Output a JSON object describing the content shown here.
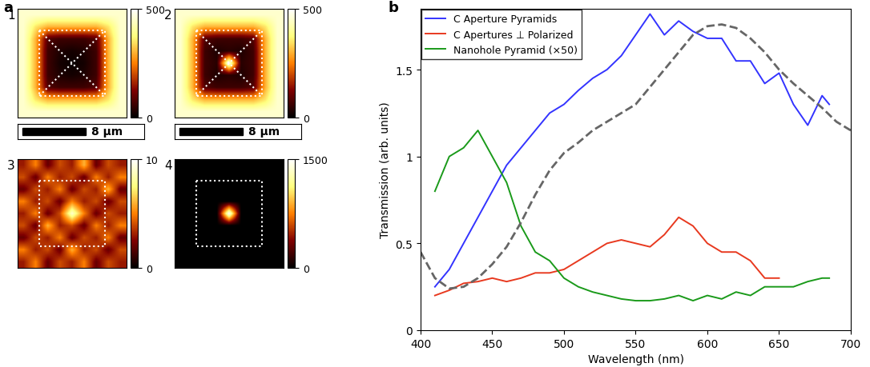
{
  "panel_labels": [
    "a",
    "b"
  ],
  "chart_data": [
    {
      "type": "heatmap",
      "label": "1",
      "tick_labels": false,
      "scale_bar_label": "8 µm",
      "colorbar_range": [
        0,
        500
      ],
      "colorbar_ticks": [
        0,
        500
      ],
      "cells": [
        [
          450,
          450,
          450,
          450,
          450,
          450,
          450,
          450,
          450
        ],
        [
          450,
          350,
          300,
          300,
          300,
          300,
          300,
          350,
          450
        ],
        [
          450,
          300,
          80,
          60,
          60,
          60,
          80,
          300,
          450
        ],
        [
          450,
          300,
          60,
          30,
          20,
          30,
          60,
          300,
          450
        ],
        [
          450,
          300,
          60,
          20,
          10,
          20,
          60,
          300,
          450
        ],
        [
          450,
          300,
          60,
          30,
          20,
          30,
          60,
          300,
          450
        ],
        [
          450,
          300,
          80,
          60,
          60,
          60,
          80,
          300,
          450
        ],
        [
          450,
          350,
          300,
          300,
          300,
          300,
          300,
          350,
          450
        ],
        [
          450,
          450,
          450,
          450,
          450,
          450,
          450,
          450,
          450
        ]
      ]
    },
    {
      "type": "heatmap",
      "label": "2",
      "tick_labels": false,
      "scale_bar_label": "8 µm",
      "colorbar_range": [
        0,
        500
      ],
      "colorbar_ticks": [
        0,
        500
      ],
      "cells": [
        [
          450,
          450,
          450,
          450,
          450,
          450,
          450,
          450,
          450
        ],
        [
          450,
          350,
          300,
          300,
          300,
          300,
          300,
          350,
          450
        ],
        [
          450,
          300,
          80,
          60,
          60,
          60,
          80,
          300,
          450
        ],
        [
          450,
          300,
          60,
          30,
          40,
          30,
          60,
          300,
          450
        ],
        [
          450,
          300,
          60,
          40,
          500,
          40,
          60,
          300,
          450
        ],
        [
          450,
          300,
          60,
          30,
          40,
          30,
          60,
          300,
          450
        ],
        [
          450,
          300,
          80,
          60,
          60,
          60,
          80,
          300,
          450
        ],
        [
          450,
          350,
          300,
          300,
          300,
          300,
          300,
          350,
          450
        ],
        [
          450,
          450,
          450,
          450,
          450,
          450,
          450,
          450,
          450
        ]
      ]
    },
    {
      "type": "heatmap",
      "label": "3",
      "tick_labels": false,
      "colorbar_range": [
        0,
        10
      ],
      "colorbar_ticks": [
        0,
        10
      ],
      "cells": [
        [
          3,
          5,
          2,
          4,
          3,
          6,
          2,
          4,
          3
        ],
        [
          4,
          2,
          5,
          3,
          4,
          2,
          5,
          3,
          5
        ],
        [
          2,
          4,
          3,
          5,
          2,
          4,
          3,
          6,
          2
        ],
        [
          5,
          3,
          4,
          2,
          5,
          3,
          4,
          2,
          4
        ],
        [
          3,
          5,
          2,
          4,
          9,
          5,
          2,
          4,
          3
        ],
        [
          4,
          2,
          6,
          3,
          4,
          2,
          5,
          3,
          5
        ],
        [
          2,
          4,
          3,
          5,
          2,
          4,
          3,
          5,
          2
        ],
        [
          5,
          3,
          4,
          2,
          6,
          3,
          4,
          2,
          4
        ],
        [
          3,
          5,
          2,
          4,
          3,
          5,
          2,
          4,
          3
        ]
      ]
    },
    {
      "type": "heatmap",
      "label": "4",
      "tick_labels": false,
      "colorbar_range": [
        0,
        1500
      ],
      "colorbar_ticks": [
        0,
        1500
      ],
      "cells": [
        [
          0,
          0,
          0,
          0,
          0,
          0,
          0,
          0,
          0
        ],
        [
          0,
          0,
          0,
          0,
          0,
          0,
          0,
          0,
          0
        ],
        [
          0,
          0,
          0,
          0,
          0,
          0,
          0,
          0,
          0
        ],
        [
          0,
          0,
          0,
          0,
          0,
          0,
          0,
          0,
          0
        ],
        [
          0,
          0,
          0,
          0,
          1500,
          0,
          0,
          0,
          0
        ],
        [
          0,
          0,
          0,
          0,
          0,
          0,
          0,
          0,
          0
        ],
        [
          0,
          0,
          0,
          0,
          0,
          0,
          0,
          0,
          0
        ],
        [
          0,
          0,
          0,
          0,
          0,
          0,
          0,
          0,
          0
        ],
        [
          0,
          0,
          0,
          0,
          0,
          0,
          0,
          0,
          0
        ]
      ]
    },
    {
      "type": "line",
      "xlabel": "Wavelength (nm)",
      "ylabel": "Transmission (arb. units)",
      "xlim": [
        400,
        700
      ],
      "ylim": [
        0,
        1.85
      ],
      "xticks": [
        400,
        450,
        500,
        550,
        600,
        650,
        700
      ],
      "yticks": [
        0,
        0.5,
        1,
        1.5
      ],
      "legend": "upper left",
      "series": [
        {
          "name": "C Aperture Pyramids",
          "color": "#3333ff",
          "line_style": "solid",
          "x": [
            410,
            420,
            430,
            440,
            450,
            460,
            470,
            480,
            490,
            500,
            510,
            520,
            530,
            540,
            550,
            560,
            570,
            580,
            590,
            600,
            610,
            620,
            630,
            640,
            650,
            660,
            670,
            680,
            685
          ],
          "values": [
            0.25,
            0.35,
            0.5,
            0.65,
            0.8,
            0.95,
            1.05,
            1.15,
            1.25,
            1.3,
            1.38,
            1.45,
            1.5,
            1.58,
            1.7,
            1.82,
            1.7,
            1.78,
            1.72,
            1.68,
            1.68,
            1.55,
            1.55,
            1.42,
            1.48,
            1.3,
            1.18,
            1.35,
            1.3
          ]
        },
        {
          "name": "C Apertures ⊥ Polarized",
          "color": "#e8391f",
          "line_style": "solid",
          "x": [
            410,
            420,
            430,
            440,
            450,
            460,
            470,
            480,
            490,
            500,
            510,
            520,
            530,
            540,
            550,
            560,
            570,
            580,
            590,
            600,
            610,
            620,
            630,
            640,
            650
          ],
          "values": [
            0.2,
            0.23,
            0.27,
            0.28,
            0.3,
            0.28,
            0.3,
            0.33,
            0.33,
            0.35,
            0.4,
            0.45,
            0.5,
            0.52,
            0.5,
            0.48,
            0.55,
            0.65,
            0.6,
            0.5,
            0.45,
            0.45,
            0.4,
            0.3,
            0.3
          ]
        },
        {
          "name": "Nanohole Pyramid (×50)",
          "color": "#1a9a1a",
          "line_style": "solid",
          "x": [
            410,
            420,
            430,
            440,
            450,
            460,
            470,
            480,
            490,
            500,
            510,
            520,
            530,
            540,
            550,
            560,
            570,
            580,
            590,
            600,
            610,
            620,
            630,
            640,
            650,
            660,
            670,
            680,
            685
          ],
          "values": [
            0.8,
            1.0,
            1.05,
            1.15,
            1.0,
            0.85,
            0.6,
            0.45,
            0.4,
            0.3,
            0.25,
            0.22,
            0.2,
            0.18,
            0.17,
            0.17,
            0.18,
            0.2,
            0.17,
            0.2,
            0.18,
            0.22,
            0.2,
            0.25,
            0.25,
            0.25,
            0.28,
            0.3,
            0.3
          ]
        },
        {
          "color": "#666666",
          "line_style": "dashed",
          "x": [
            400,
            410,
            420,
            430,
            440,
            450,
            460,
            470,
            480,
            490,
            500,
            510,
            520,
            530,
            540,
            550,
            560,
            570,
            580,
            590,
            600,
            610,
            620,
            630,
            640,
            650,
            660,
            670,
            680,
            690,
            700
          ],
          "values": [
            0.45,
            0.3,
            0.24,
            0.25,
            0.3,
            0.38,
            0.48,
            0.62,
            0.78,
            0.92,
            1.02,
            1.08,
            1.15,
            1.2,
            1.25,
            1.3,
            1.4,
            1.5,
            1.6,
            1.7,
            1.75,
            1.76,
            1.74,
            1.68,
            1.6,
            1.5,
            1.42,
            1.35,
            1.28,
            1.2,
            1.15
          ]
        }
      ]
    }
  ]
}
